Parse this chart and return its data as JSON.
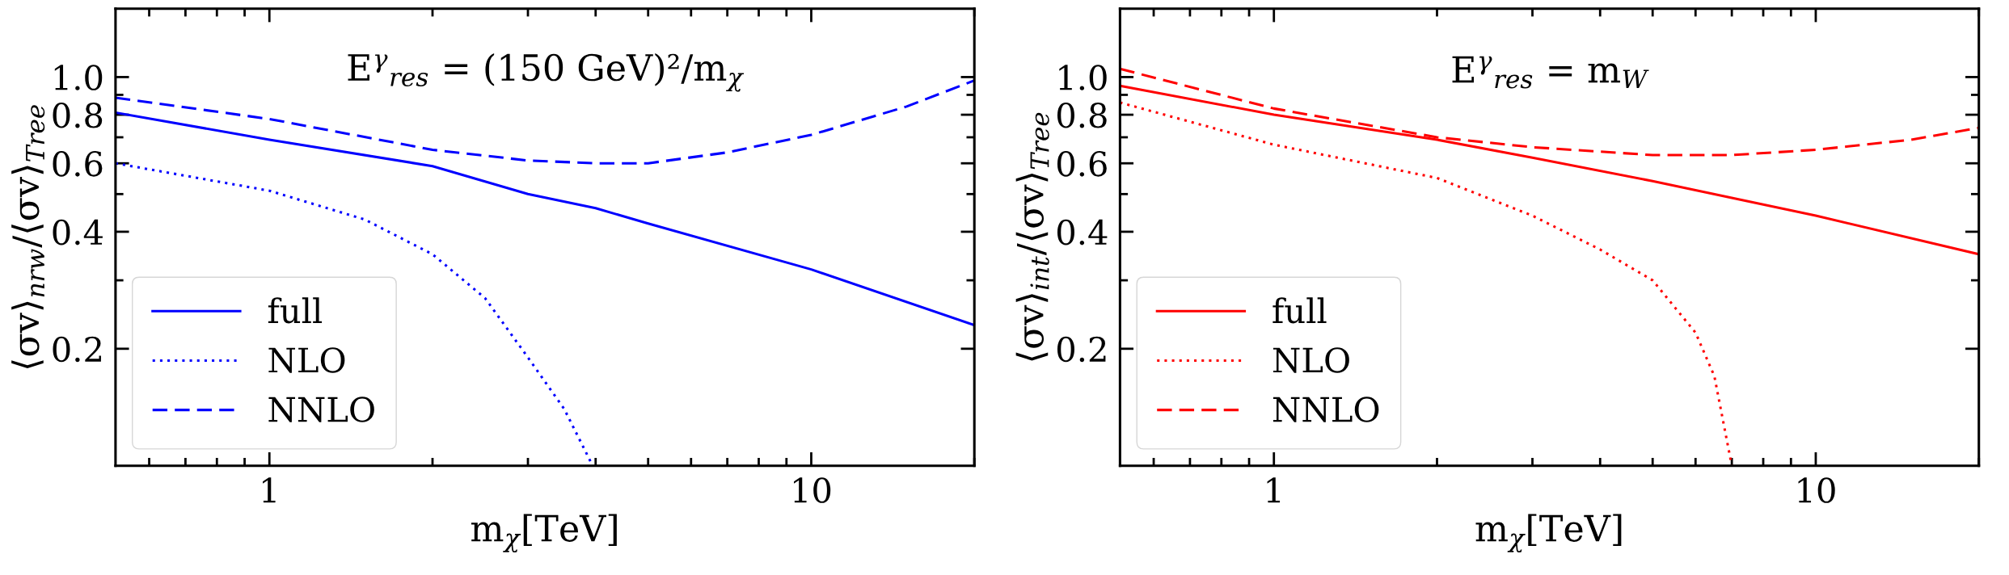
{
  "chart_data": [
    {
      "type": "line",
      "xlabel": "m$_{χ}$[TeV]",
      "ylabel": "⟨σv⟩$_{nrw}$/⟨σv⟩$_{Tree}$",
      "annotations": [
        "E$^{γ}$$_{res}$ = (150 GeV)²/m$_{χ}$"
      ],
      "log": "xy",
      "legend": "lower left",
      "grid": false,
      "xlim": [
        0.52,
        20
      ],
      "ylim": [
        0.1,
        1.5
      ],
      "xticks": [
        {
          "value": 0.6,
          "label": null
        },
        {
          "value": 0.7,
          "label": null
        },
        {
          "value": 0.8,
          "label": null
        },
        {
          "value": 0.9,
          "label": null
        },
        1,
        {
          "value": 2,
          "label": null
        },
        {
          "value": 3,
          "label": null
        },
        {
          "value": 4,
          "label": null
        },
        {
          "value": 5,
          "label": null
        },
        {
          "value": 6,
          "label": null
        },
        {
          "value": 7,
          "label": null
        },
        {
          "value": 8,
          "label": null
        },
        {
          "value": 9,
          "label": null
        },
        10,
        {
          "value": 20,
          "label": null
        }
      ],
      "yticks": [
        0.2,
        {
          "value": 0.3,
          "label": null
        },
        0.4,
        {
          "value": 0.5,
          "label": null
        },
        0.6,
        {
          "value": 0.7,
          "label": null
        },
        0.8,
        {
          "value": 0.9,
          "label": null
        },
        {
          "value": 1.0,
          "label": "1.0"
        }
      ],
      "series": [
        {
          "name": "full",
          "color": "#0000ff",
          "line_style": "solid",
          "x": [
            0.52,
            1,
            2,
            3,
            4,
            5,
            10,
            20
          ],
          "values": [
            0.81,
            0.69,
            0.59,
            0.5,
            0.46,
            0.42,
            0.32,
            0.23
          ]
        },
        {
          "name": "NLO",
          "color": "#0000ff",
          "line_style": "dotted",
          "x": [
            0.52,
            1,
            1.5,
            2,
            2.5,
            3,
            3.5,
            3.95
          ],
          "values": [
            0.6,
            0.51,
            0.43,
            0.35,
            0.27,
            0.19,
            0.14,
            0.1
          ]
        },
        {
          "name": "NNLO",
          "color": "#0000ff",
          "line_style": "dashed",
          "x": [
            0.52,
            1,
            2,
            3,
            4,
            5,
            7,
            10,
            15,
            20
          ],
          "values": [
            0.885,
            0.78,
            0.65,
            0.61,
            0.6,
            0.6,
            0.64,
            0.71,
            0.84,
            0.98
          ]
        }
      ]
    },
    {
      "type": "line",
      "xlabel": "m$_{χ}$[TeV]",
      "ylabel": "⟨σv⟩$_{int}$/⟨σv⟩$_{Tree}$",
      "annotations": [
        "E$^{γ}$$_{res}$ = m$_{W}$"
      ],
      "log": "xy",
      "legend": "lower left",
      "grid": false,
      "xlim": [
        0.52,
        20
      ],
      "ylim": [
        0.1,
        1.5
      ],
      "xticks": [
        {
          "value": 0.6,
          "label": null
        },
        {
          "value": 0.7,
          "label": null
        },
        {
          "value": 0.8,
          "label": null
        },
        {
          "value": 0.9,
          "label": null
        },
        1,
        {
          "value": 2,
          "label": null
        },
        {
          "value": 3,
          "label": null
        },
        {
          "value": 4,
          "label": null
        },
        {
          "value": 5,
          "label": null
        },
        {
          "value": 6,
          "label": null
        },
        {
          "value": 7,
          "label": null
        },
        {
          "value": 8,
          "label": null
        },
        {
          "value": 9,
          "label": null
        },
        10,
        {
          "value": 20,
          "label": null
        }
      ],
      "yticks": [
        0.2,
        {
          "value": 0.3,
          "label": null
        },
        0.4,
        {
          "value": 0.5,
          "label": null
        },
        0.6,
        {
          "value": 0.7,
          "label": null
        },
        0.8,
        {
          "value": 0.9,
          "label": null
        },
        {
          "value": 1.0,
          "label": "1.0"
        }
      ],
      "series": [
        {
          "name": "full",
          "color": "#ff0000",
          "line_style": "solid",
          "x": [
            0.52,
            1,
            2,
            3,
            5,
            10,
            20
          ],
          "values": [
            0.95,
            0.8,
            0.69,
            0.62,
            0.54,
            0.44,
            0.35
          ]
        },
        {
          "name": "NLO",
          "color": "#ff0000",
          "line_style": "dotted",
          "x": [
            0.52,
            1,
            2,
            3,
            4,
            5,
            6,
            6.5,
            7
          ],
          "values": [
            0.86,
            0.67,
            0.55,
            0.44,
            0.36,
            0.3,
            0.22,
            0.17,
            0.1
          ]
        },
        {
          "name": "NNLO",
          "color": "#ff0000",
          "line_style": "dashed",
          "x": [
            0.52,
            1,
            2,
            3,
            5,
            7,
            10,
            15,
            20
          ],
          "values": [
            1.05,
            0.83,
            0.7,
            0.66,
            0.63,
            0.63,
            0.65,
            0.69,
            0.74
          ]
        }
      ]
    }
  ]
}
